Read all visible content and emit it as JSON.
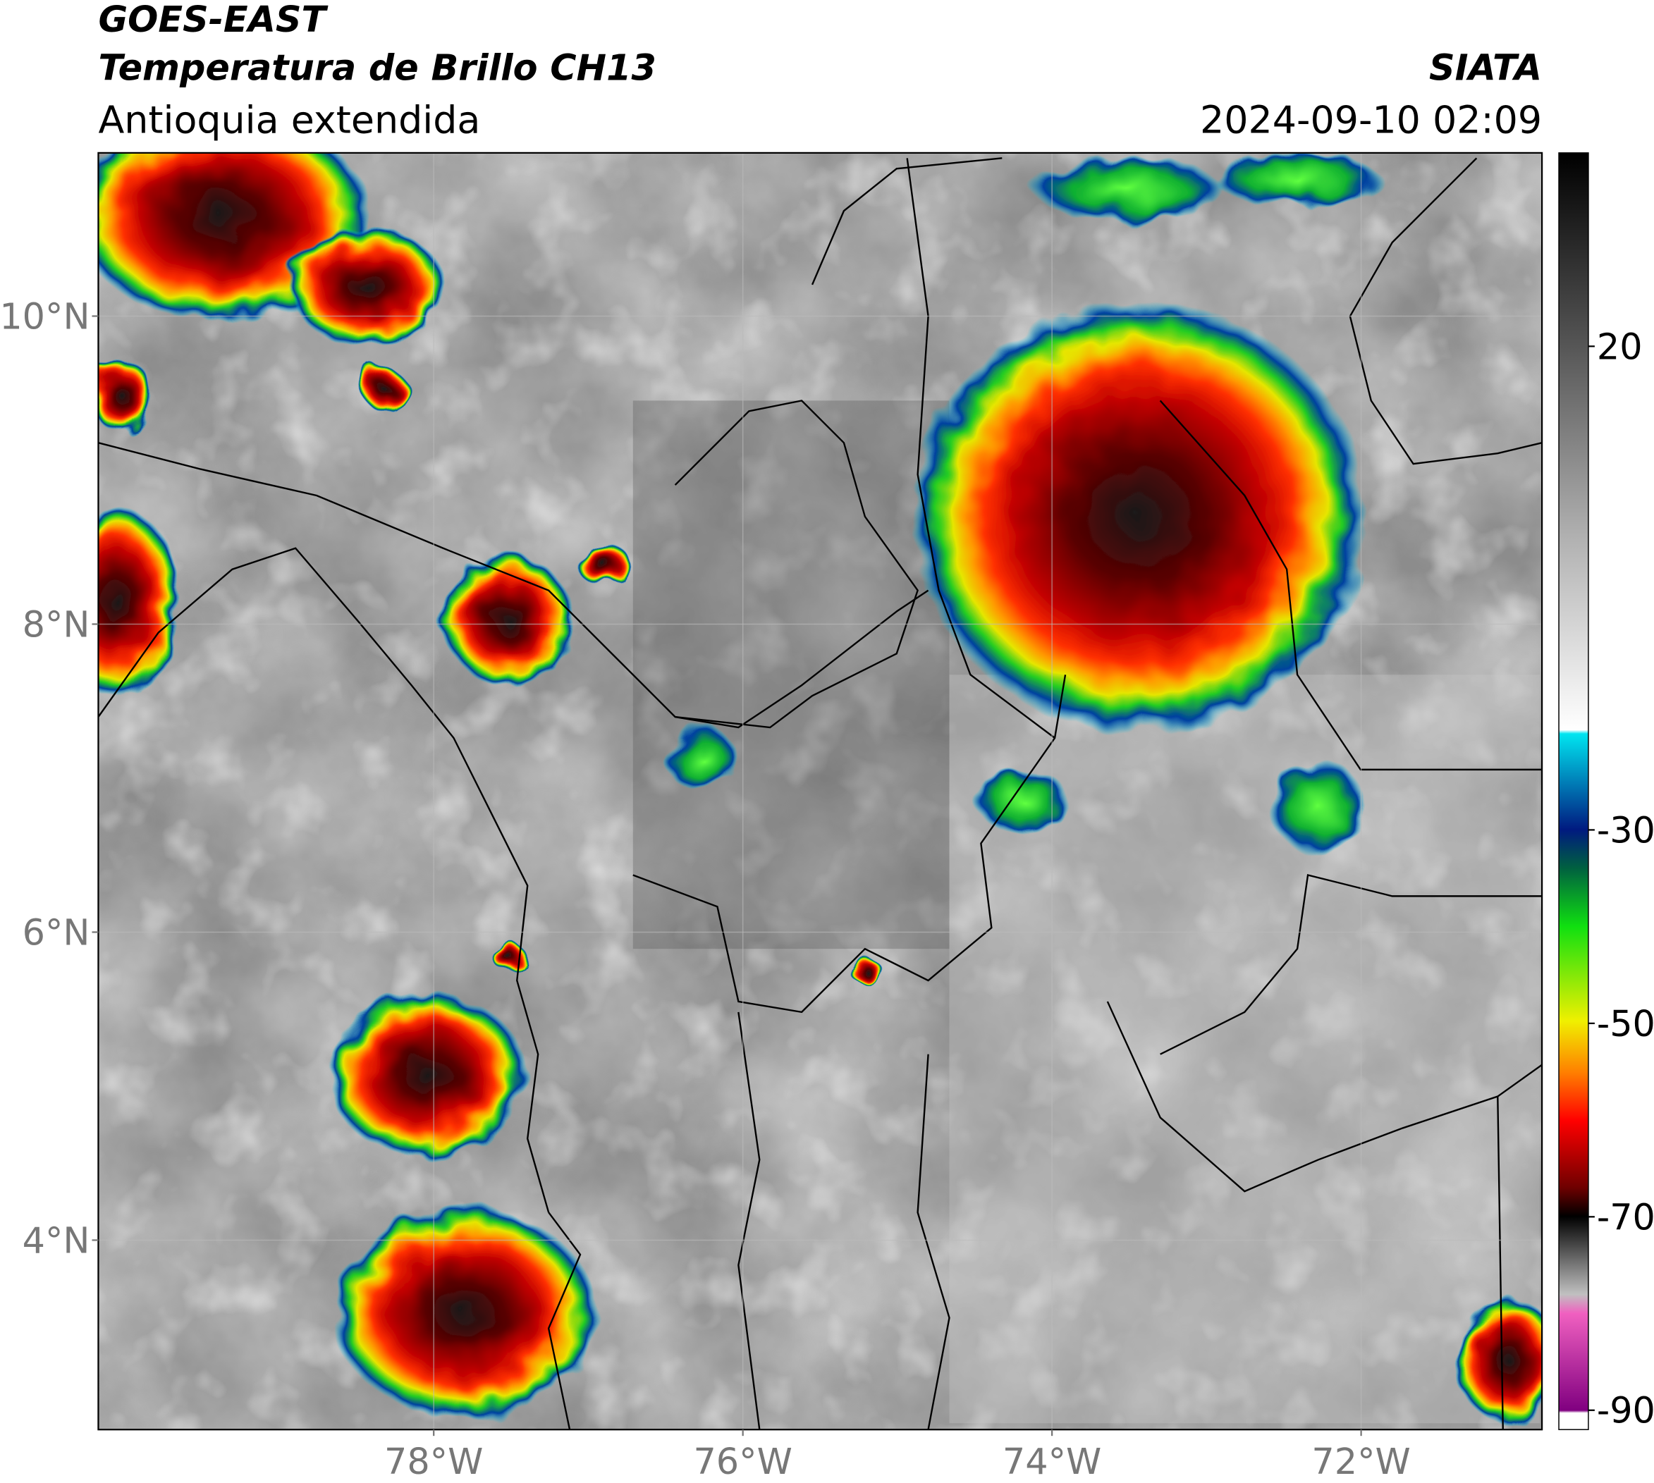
{
  "header": {
    "title": "GOES-EAST",
    "subtitle": "Temperatura de Brillo CH13",
    "region": "Antioquia extendida",
    "source": "SIATA",
    "datetime": "2024-09-10 02:09"
  },
  "map": {
    "lon_range": [
      -80.17,
      -70.83
    ],
    "lat_range": [
      2.77,
      11.06
    ],
    "lon_ticks": [
      {
        "value": -78,
        "label": "78°W"
      },
      {
        "value": -76,
        "label": "76°W"
      },
      {
        "value": -74,
        "label": "74°W"
      },
      {
        "value": -72,
        "label": "72°W"
      }
    ],
    "lat_ticks": [
      {
        "value": 10,
        "label": "10°N"
      },
      {
        "value": 8,
        "label": "8°N"
      },
      {
        "value": 6,
        "label": "6°N"
      },
      {
        "value": 4,
        "label": "4°N"
      }
    ]
  },
  "colorbar": {
    "range": [
      -92,
      40
    ],
    "ticks": [
      20,
      -30,
      -50,
      -70,
      -90
    ]
  }
}
